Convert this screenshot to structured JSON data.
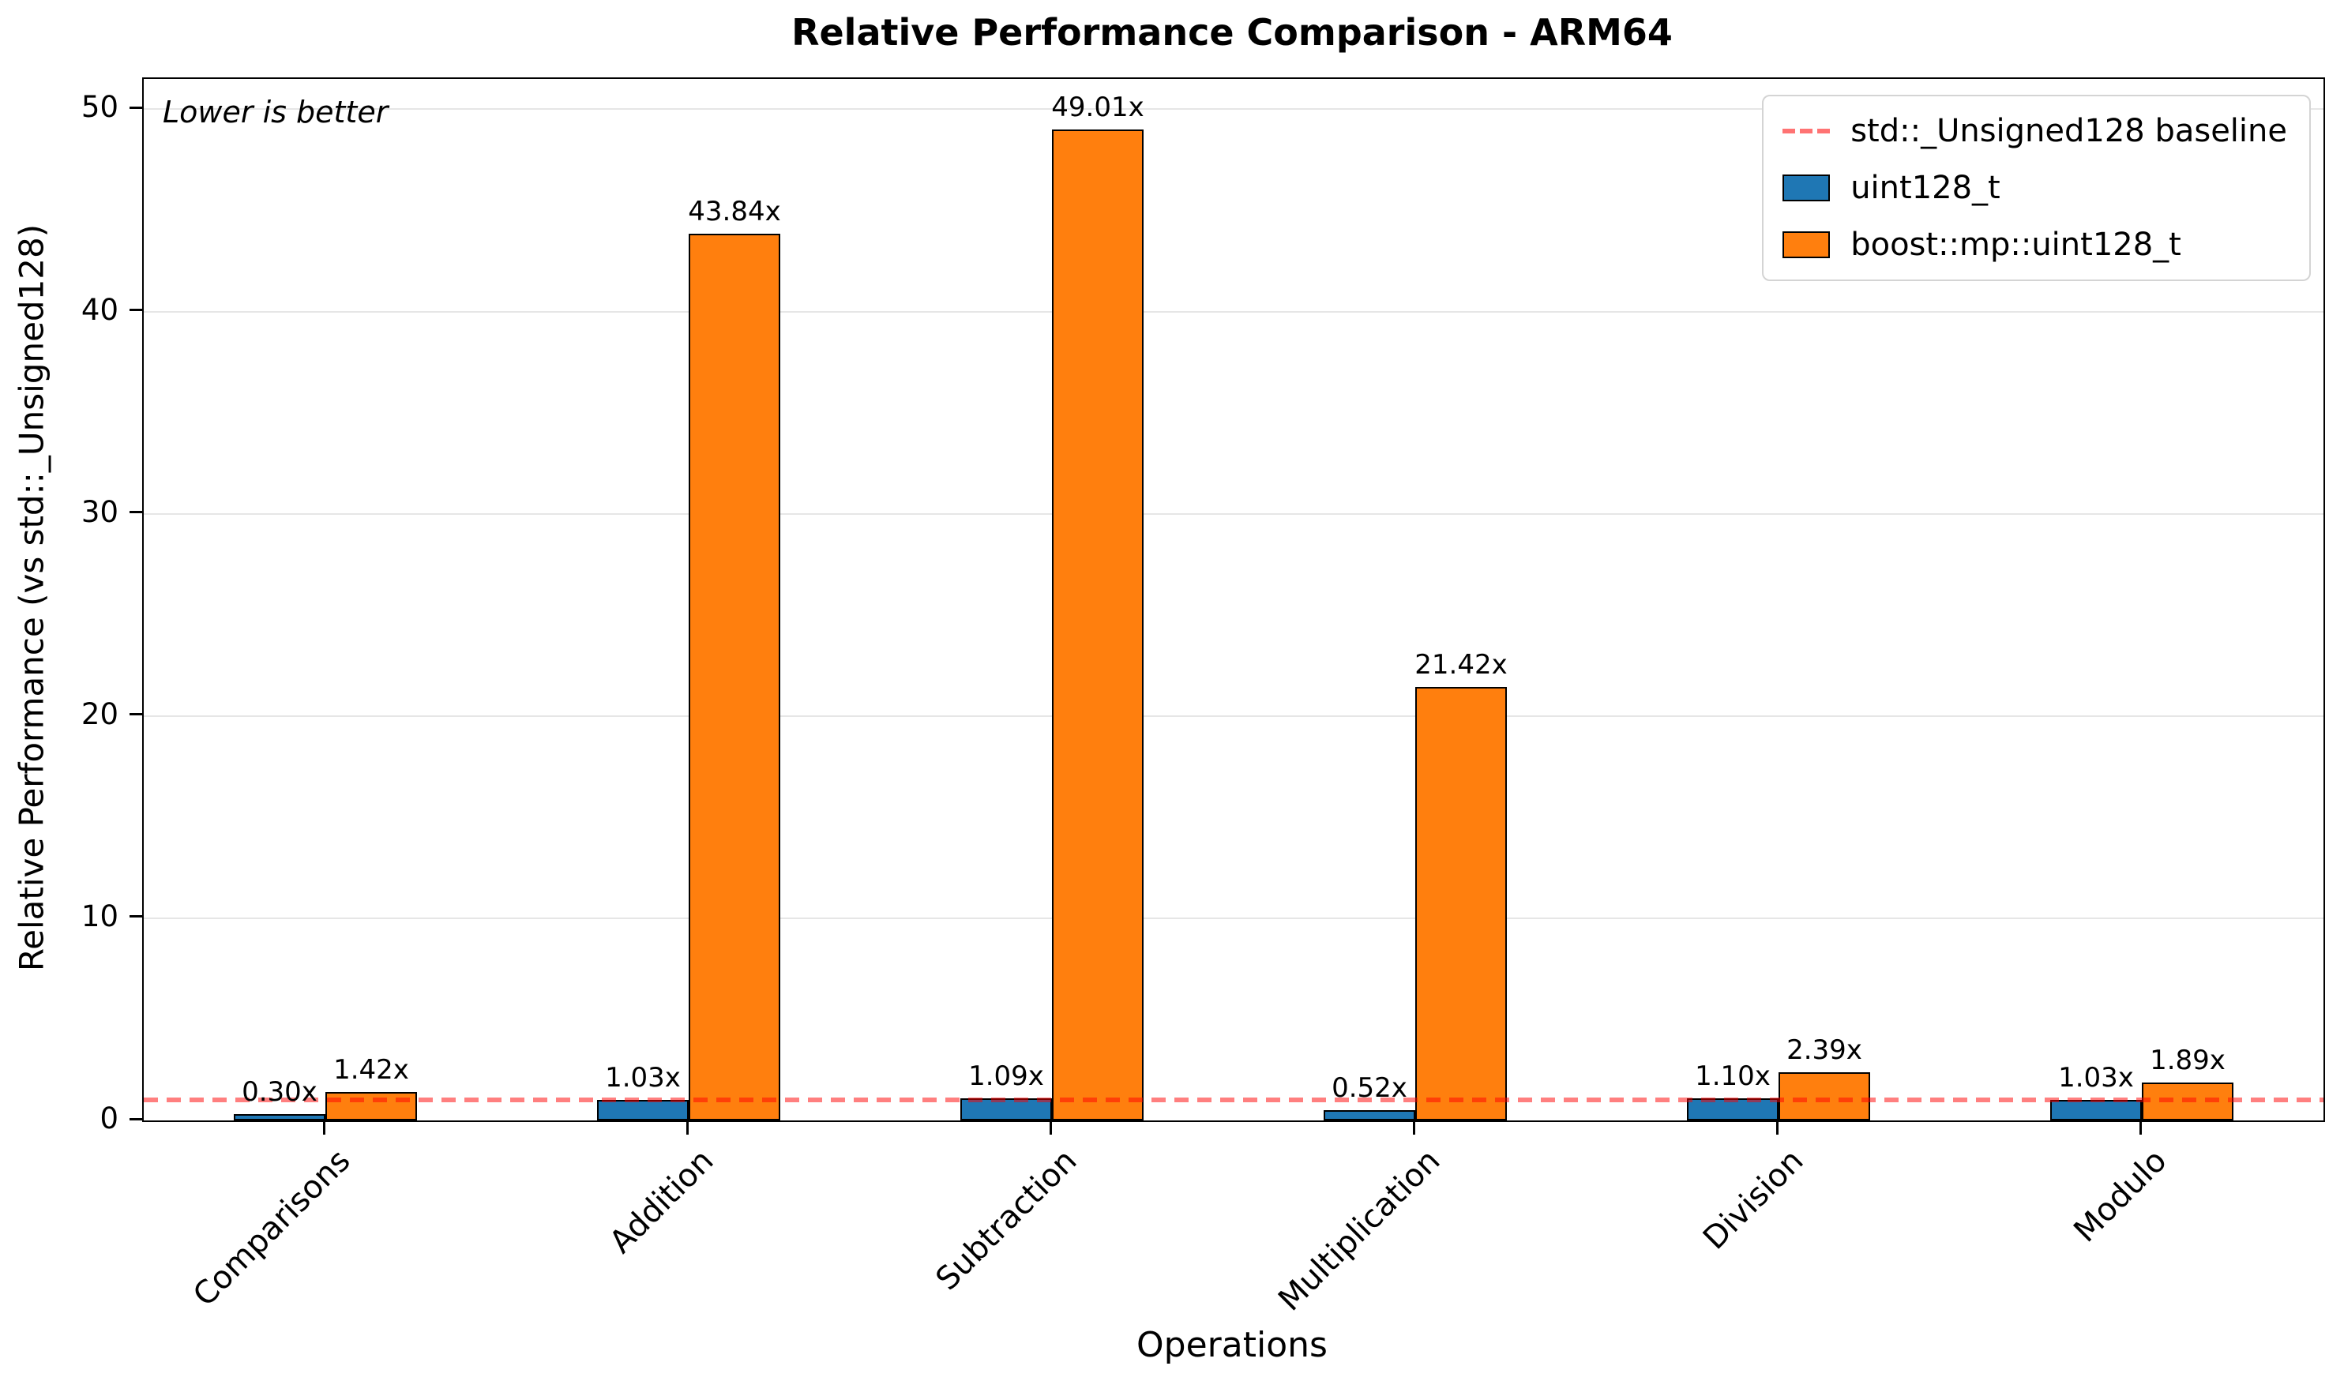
{
  "figure": {
    "background": "#ffffff",
    "frame_color": "#000000",
    "gridline_color": "#e6e6e6"
  },
  "chart_data": {
    "type": "bar",
    "title": "Relative Performance Comparison - ARM64",
    "xlabel": "Operations",
    "ylabel": "Relative Performance (vs std::_Unsigned128)",
    "annotation": "Lower is better",
    "categories": [
      "Comparisons",
      "Addition",
      "Subtraction",
      "Multiplication",
      "Division",
      "Modulo"
    ],
    "series": [
      {
        "name": "uint128_t",
        "color": "#1f77b4",
        "values": [
          0.3,
          1.03,
          1.09,
          0.52,
          1.1,
          1.03
        ],
        "labels": [
          "0.30x",
          "1.03x",
          "1.09x",
          "0.52x",
          "1.10x",
          "1.03x"
        ]
      },
      {
        "name": "boost::mp::uint128_t",
        "color": "#ff7f0e",
        "values": [
          1.42,
          43.84,
          49.01,
          21.42,
          2.39,
          1.89
        ],
        "labels": [
          "1.42x",
          "43.84x",
          "49.01x",
          "21.42x",
          "2.39x",
          "1.89x"
        ]
      }
    ],
    "baseline": {
      "value": 1.0,
      "label": "std::_Unsigned128 baseline",
      "color": "rgba(255,0,0,0.5)",
      "style": "dashed"
    },
    "yticks": [
      0,
      10,
      20,
      30,
      40,
      50
    ],
    "ylim": [
      0,
      51.5
    ],
    "grid": "horizontal",
    "legend_position": "upper-right",
    "bar_edge_color": "#000000",
    "category_label_rotation_deg": 45
  }
}
